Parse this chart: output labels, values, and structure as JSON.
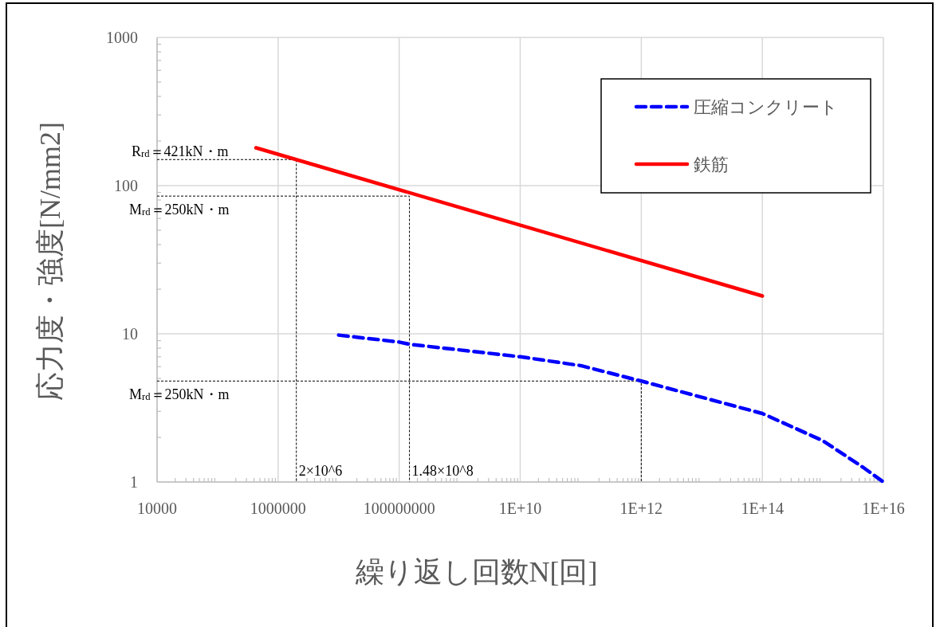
{
  "chart_data": {
    "type": "line",
    "xlabel": "繰り返し回数N[回]",
    "ylabel": "応力度・強度[N/mm2]",
    "log": "xy",
    "grid": true,
    "legend": "top right",
    "xlim": [
      10000,
      1e+16
    ],
    "ylim": [
      1,
      1000
    ],
    "xticks": [
      10000,
      1000000,
      100000000,
      {
        "value": 10000000000.0,
        "label": "1E+10"
      },
      {
        "value": 1000000000000.0,
        "label": "1E+12"
      },
      {
        "value": 100000000000000.0,
        "label": "1E+14"
      },
      {
        "value": 1e+16,
        "label": "1E+16"
      }
    ],
    "yticks": [
      1,
      10,
      100,
      1000
    ],
    "series": [
      {
        "name": "圧縮コンクリート",
        "color": "#0000ff",
        "line_style": "dashed",
        "x": [
          10000000.0,
          100000000.0,
          148000000.0,
          10000000000.0,
          100000000000.0,
          1000000000000.0,
          100000000000000.0,
          1000000000000000.0,
          4700000000000000.0,
          1e+16
        ],
        "values": [
          9.8,
          8.8,
          8.5,
          7.0,
          6.1,
          4.8,
          2.9,
          1.9,
          1.25,
          1
        ]
      },
      {
        "name": "鉄筋",
        "color": "#ff0000",
        "line_style": "solid",
        "x": [
          430000,
          100000000000000.0
        ],
        "values": [
          180,
          18
        ]
      },
      {
        "color": "#000000",
        "line_style": "dotted",
        "x": [
          10000,
          2000000,
          2000000
        ],
        "values": [
          150,
          150,
          1
        ]
      },
      {
        "color": "#000000",
        "line_style": "dotted",
        "x": [
          10000,
          148000000.0,
          148000000.0
        ],
        "values": [
          85,
          85,
          1
        ]
      },
      {
        "color": "#000000",
        "line_style": "dotted",
        "x": [
          10000,
          1000000000000.0,
          1000000000000.0
        ],
        "values": [
          4.8,
          4.8,
          1
        ]
      }
    ],
    "annotations": [
      {
        "text": "R$_{rd}$＝421kN・m",
        "x": 10000,
        "y": 150
      },
      {
        "text": "M$_{rd}$＝250kN・m",
        "x": 10000,
        "y": 85
      },
      {
        "text": "M$_{rd}$＝250kN・m",
        "x": 10000,
        "y": 4.8
      },
      {
        "text": "2×10^6",
        "x": 2000000,
        "y": 1
      },
      {
        "text": "1.48×10^8",
        "x": 148000000.0,
        "y": 1
      }
    ]
  }
}
